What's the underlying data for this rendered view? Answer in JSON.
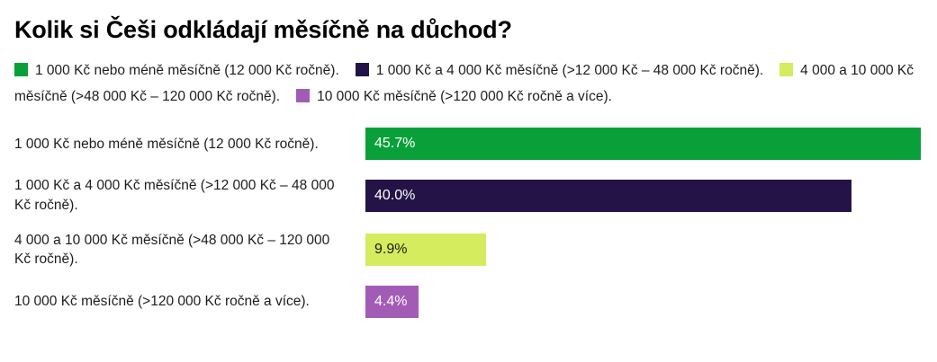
{
  "chart_data": {
    "type": "bar",
    "orientation": "horizontal",
    "title": "Kolik si Češi odkládají měsíčně na důchod?",
    "categories": [
      "1 000 Kč nebo méně měsíčně (12 000 Kč ročně).",
      "1 000 Kč a 4 000 Kč měsíčně (>12 000 Kč – 48 000 Kč ročně).",
      "4 000 a 10 000 Kč měsíčně (>48 000 Kč – 120 000 Kč ročně).",
      "10 000 Kč měsíčně (>120 000 Kč ročně a více)."
    ],
    "values": [
      45.7,
      40.0,
      9.9,
      4.4
    ],
    "value_labels": [
      "45.7%",
      "40.0%",
      "9.9%",
      "4.4%"
    ],
    "bar_colors": [
      "#09a039",
      "#241346",
      "#d4ec5e",
      "#a35cb5"
    ],
    "value_label_colors": [
      "#ffffff",
      "#ffffff",
      "#1a1a1a",
      "#ffffff"
    ],
    "xlim": [
      0,
      45.7
    ],
    "grid": false,
    "legend_position": "top",
    "legend": [
      {
        "label": "1 000 Kč nebo méně měsíčně (12 000 Kč ročně).",
        "color": "#09a039"
      },
      {
        "label": "1 000 Kč a 4 000 Kč měsíčně (>12 000 Kč – 48 000 Kč ročně).",
        "color": "#241346"
      },
      {
        "label": "4 000 a 10 000 Kč měsíčně (>48 000 Kč – 120 000 Kč ročně).",
        "color": "#d4ec5e"
      },
      {
        "label": "10 000 Kč měsíčně (>120 000 Kč ročně a více).",
        "color": "#a35cb5"
      }
    ]
  }
}
